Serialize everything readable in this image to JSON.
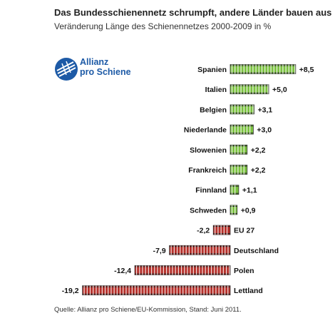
{
  "header": {
    "title": "Das Bundesschienennetz schrumpft, andere Länder bauen aus",
    "subtitle": "Veränderung Länge des Schienennetzes 2000-2009 in %"
  },
  "logo": {
    "line1": "Allianz",
    "line2": "pro Schiene"
  },
  "source": "Quelle: Allianz pro Schiene/EU-Kommission, Stand: Juni 2011.",
  "colors": {
    "positive": "#7cc242",
    "negative": "#b5302a",
    "logo": "#1d5aa6"
  },
  "chart_data": {
    "type": "bar",
    "orientation": "horizontal",
    "categories": [
      "Spanien",
      "Italien",
      "Belgien",
      "Niederlande",
      "Slowenien",
      "Frankreich",
      "Finnland",
      "Schweden",
      "EU 27",
      "Deutschland",
      "Polen",
      "Lettland"
    ],
    "values": [
      8.5,
      5.0,
      3.1,
      3.0,
      2.2,
      2.2,
      1.1,
      0.9,
      -2.2,
      -7.9,
      -12.4,
      -19.2
    ],
    "labels": [
      "+8,5",
      "+5,0",
      "+3,1",
      "+3,0",
      "+2,2",
      "+2,2",
      "+1,1",
      "+0,9",
      "-2,2",
      "-7,9",
      "-12,4",
      "-19,2"
    ]
  }
}
